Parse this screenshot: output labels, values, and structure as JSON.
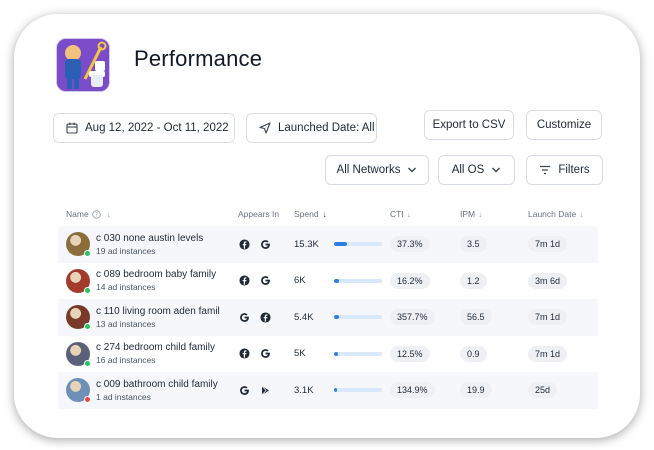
{
  "header": {
    "title": "Performance"
  },
  "filters": {
    "date_range": "Aug 12, 2022 - Oct 11, 2022",
    "launched_date": "Launched Date: All",
    "export": "Export to CSV",
    "customize": "Customize",
    "networks": "All Networks",
    "os": "All OS",
    "filters": "Filters"
  },
  "table": {
    "columns": {
      "name": "Name",
      "appears_in": "Appears In",
      "spend": "Spend",
      "cti": "CTI",
      "ipm": "IPM",
      "launch_date": "Launch Date"
    },
    "rows": [
      {
        "name": "c 030 none austin levels",
        "instances": "19 ad instances",
        "networks": [
          "facebook",
          "google"
        ],
        "spend": "15.3K",
        "spend_fraction": 0.28,
        "cti": "37.3%",
        "ipm": "3.5",
        "launch": "7m 1d",
        "status_color": "#22c55e",
        "avatar_color": "#8a6d3b"
      },
      {
        "name": "c 089 bedroom baby family",
        "instances": "14 ad instances",
        "networks": [
          "facebook",
          "google"
        ],
        "spend": "6K",
        "spend_fraction": 0.11,
        "cti": "16.2%",
        "ipm": "1.2",
        "launch": "3m 6d",
        "status_color": "#22c55e",
        "avatar_color": "#a33b2c"
      },
      {
        "name": "c 110 living room aden famil",
        "instances": "13 ad instances",
        "networks": [
          "google",
          "facebook"
        ],
        "spend": "5.4K",
        "spend_fraction": 0.1,
        "cti": "357.7%",
        "ipm": "56.5",
        "launch": "7m 1d",
        "status_color": "#22c55e",
        "avatar_color": "#7a3a2a"
      },
      {
        "name": "c 274 bedroom child family",
        "instances": "16 ad instances",
        "networks": [
          "facebook",
          "google"
        ],
        "spend": "5K",
        "spend_fraction": 0.09,
        "cti": "12.5%",
        "ipm": "0.9",
        "launch": "7m 1d",
        "status_color": "#22c55e",
        "avatar_color": "#5a6078"
      },
      {
        "name": "c 009 bathroom child family",
        "instances": "1 ad instances",
        "networks": [
          "google",
          "google-play"
        ],
        "spend": "3.1K",
        "spend_fraction": 0.06,
        "cti": "134.9%",
        "ipm": "19.9",
        "launch": "25d",
        "status_color": "#ef4444",
        "avatar_color": "#6e8fb8"
      }
    ]
  },
  "colors": {
    "accent": "#2f7de1",
    "bar_track": "#d9e8fb"
  }
}
